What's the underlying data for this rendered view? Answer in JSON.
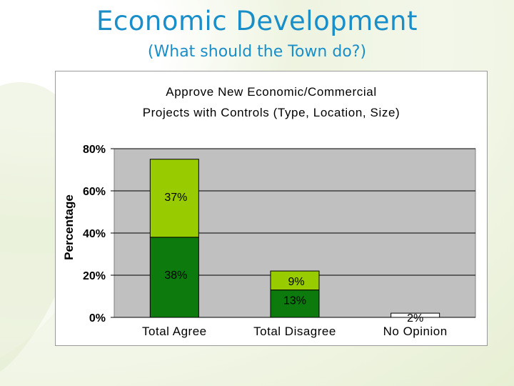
{
  "slide": {
    "title": "Economic Development",
    "subtitle": "(What should the Town do?)"
  },
  "colors": {
    "title": "#1a8ec9",
    "plot_background": "#c0c0c0",
    "series_dark": "#0d7a0d",
    "series_light": "#99cc00",
    "series_white": "#ffffff"
  },
  "chart_data": {
    "type": "bar",
    "stacked": true,
    "title_lines": [
      "Approve New Economic/Commercial",
      "Projects with Controls (Type, Location, Size)"
    ],
    "ylabel": "Percentage",
    "xlabel": "",
    "categories": [
      "Total Agree",
      "Total Disagree",
      "No Opinion"
    ],
    "yticks": [
      "0%",
      "20%",
      "40%",
      "60%",
      "80%"
    ],
    "ylim": [
      0,
      80
    ],
    "grid": true,
    "legend": "none",
    "segments": [
      {
        "category": "Total Agree",
        "value": 38,
        "label": "38%",
        "color": "#0d7a0d"
      },
      {
        "category": "Total Agree",
        "value": 37,
        "label": "37%",
        "color": "#99cc00"
      },
      {
        "category": "Total Disagree",
        "value": 13,
        "label": "13%",
        "color": "#0d7a0d"
      },
      {
        "category": "Total Disagree",
        "value": 9,
        "label": "9%",
        "color": "#99cc00"
      },
      {
        "category": "No Opinion",
        "value": 2,
        "label": "2%",
        "color": "#ffffff"
      }
    ]
  }
}
